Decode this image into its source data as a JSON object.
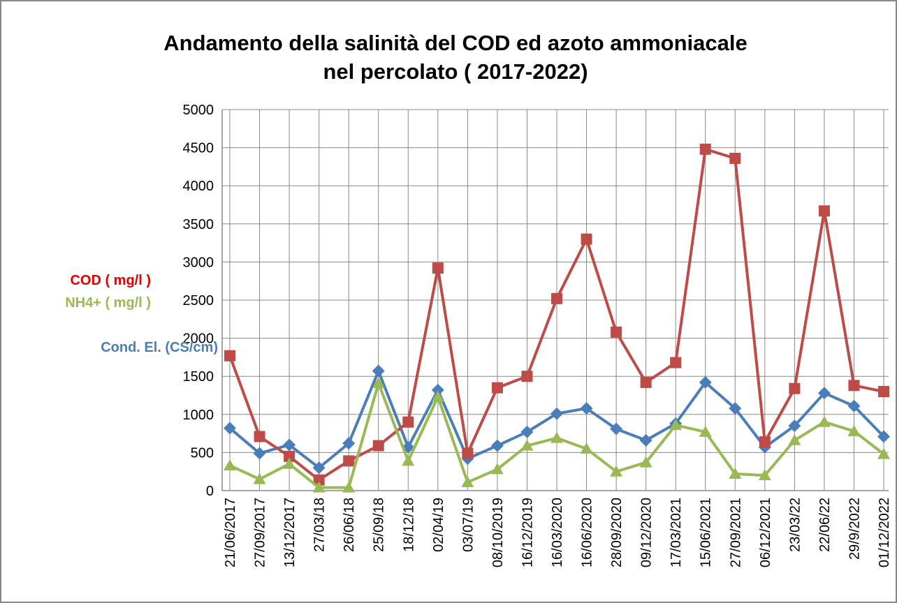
{
  "chart_data": {
    "type": "line",
    "title": [
      "Andamento della salinità  del COD ed azoto ammoniacale",
      "nel percolato ( 2017-2022)"
    ],
    "categories": [
      "21/06/2017",
      "27/09/2017",
      "13/12/2017",
      "27/03/18",
      "26/06/18",
      "25/09/18",
      "18/12/18",
      "02/04/19",
      "03/07/19",
      "08/10/2019",
      "16/12/2019",
      "16/03/2020",
      "16/06/2020",
      "28/09/2020",
      "09/12/2020",
      "17/03/2021",
      "15/06/2021",
      "27/09/2021",
      "06/12/2021",
      "23/03/22",
      "22/06/22",
      "29/9/2022",
      "01/12/2022"
    ],
    "series": [
      {
        "name": "Cond. El. (CS/cm)",
        "color": "#4a7ebb",
        "marker": "diamond",
        "values": [
          820,
          490,
          600,
          300,
          620,
          1570,
          570,
          1320,
          420,
          590,
          770,
          1010,
          1080,
          810,
          660,
          880,
          1420,
          1080,
          570,
          850,
          1280,
          1110,
          710
        ]
      },
      {
        "name": "COD ( mg/l )",
        "color": "#be4b48",
        "marker": "square",
        "values": [
          1770,
          710,
          450,
          140,
          390,
          590,
          900,
          2920,
          490,
          1350,
          1500,
          2520,
          3300,
          2080,
          1420,
          1680,
          4480,
          4360,
          640,
          1340,
          3670,
          1380,
          1300
        ]
      },
      {
        "name": "NH4+ ( mg/l )",
        "color": "#98b954",
        "marker": "triangle",
        "values": [
          330,
          150,
          350,
          40,
          40,
          1410,
          390,
          1230,
          110,
          280,
          590,
          690,
          550,
          250,
          370,
          860,
          770,
          220,
          200,
          660,
          900,
          780,
          480
        ]
      }
    ],
    "ylim": [
      0,
      5000
    ],
    "yticks": [
      0,
      500,
      1000,
      1500,
      2000,
      2500,
      3000,
      3500,
      4000,
      4500,
      5000
    ],
    "grid": true
  }
}
